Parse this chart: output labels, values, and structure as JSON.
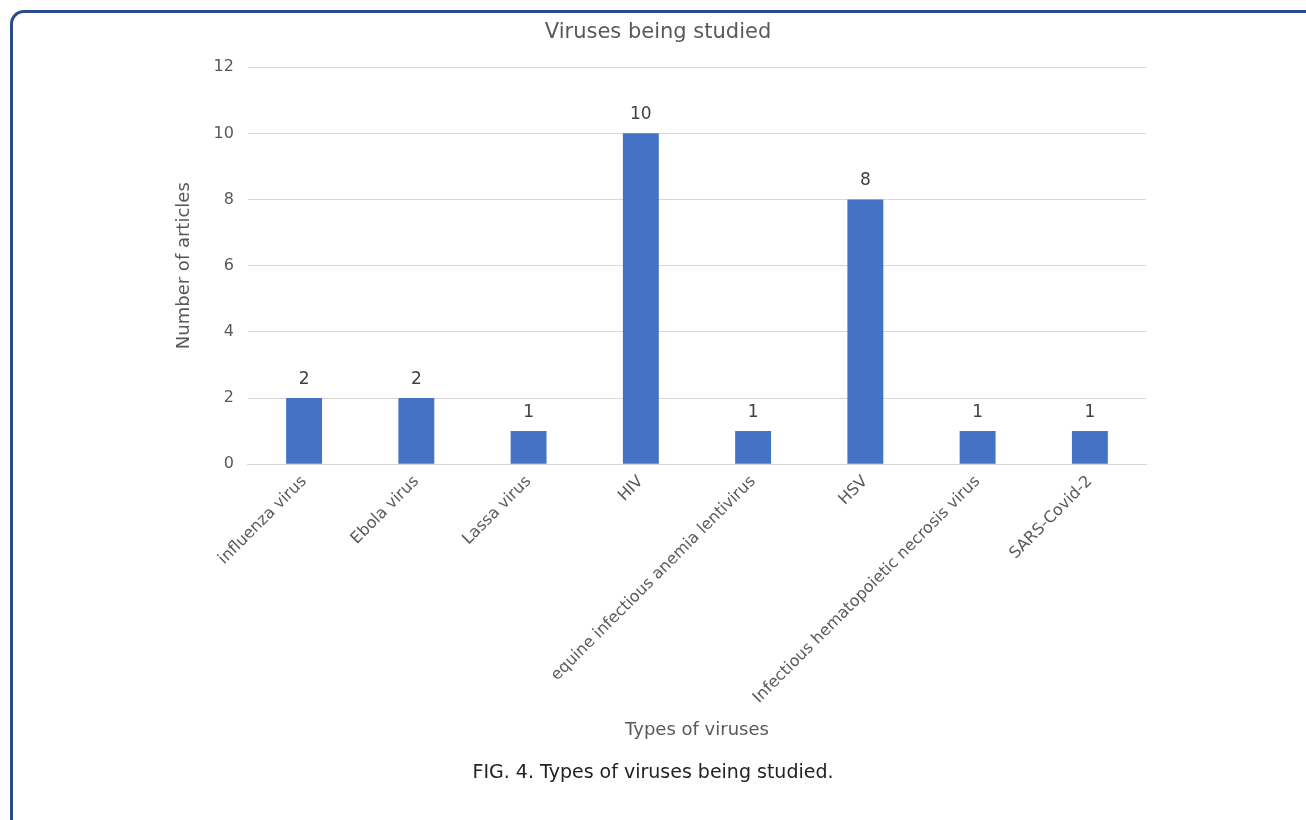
{
  "chart_data": {
    "type": "bar",
    "title": "Viruses being studied",
    "xlabel": "Types of viruses",
    "ylabel": "Number of articles",
    "categories": [
      "influenza virus",
      "Ebola virus",
      "Lassa virus",
      "HIV",
      "equine infectious anemia lentivirus",
      "HSV",
      "Infectious hematopoietic necrosis virus",
      "SARS-Covid-2"
    ],
    "values": [
      2,
      2,
      1,
      10,
      1,
      8,
      1,
      1
    ],
    "color": "#4472c4",
    "ylim": [
      0,
      12
    ],
    "yticks": [
      0,
      2,
      4,
      6,
      8,
      10,
      12
    ],
    "grid": "y",
    "data_labels": true,
    "legend": false,
    "annotations": [
      "FIG. 4.    Types of viruses being studied."
    ]
  }
}
